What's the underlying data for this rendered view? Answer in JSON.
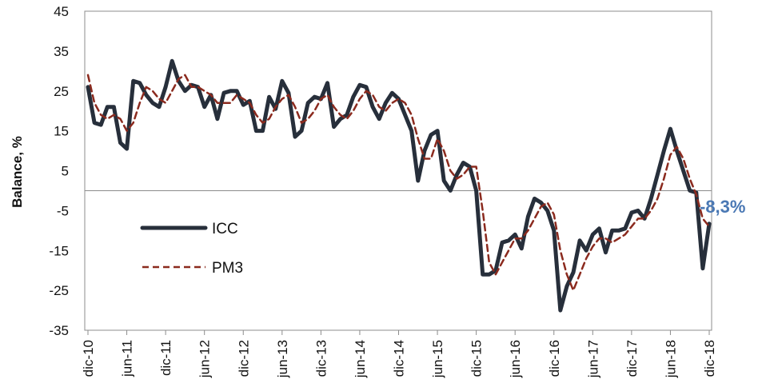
{
  "chart_data": {
    "type": "line",
    "title": "",
    "xlabel": "",
    "ylabel": "Balance, %",
    "ylim": [
      -35,
      45
    ],
    "yticks": [
      45,
      35,
      25,
      15,
      5,
      -5,
      -15,
      -25,
      -35
    ],
    "xticks": [
      "dic-10",
      "jun-11",
      "dic-11",
      "jun-12",
      "dic-12",
      "jun-13",
      "dic-13",
      "jun-14",
      "dic-14",
      "jun-15",
      "dic-15",
      "jun-16",
      "dic-16",
      "jun-17",
      "dic-17",
      "jun-18",
      "dic-18"
    ],
    "grid": false,
    "reference_line": 0,
    "legend": {
      "placement": "center-left"
    },
    "series": [
      {
        "name": "ICC",
        "color": "#272f3b",
        "style": "solid",
        "values": [
          26,
          17,
          16.5,
          21,
          21,
          12,
          10.5,
          27.5,
          27,
          24,
          22,
          21,
          26,
          32.5,
          27.5,
          25,
          26.5,
          26,
          21,
          24,
          18,
          24.5,
          25,
          25,
          21.5,
          22.5,
          15,
          15,
          23.5,
          20.5,
          27.5,
          24.5,
          13.5,
          15,
          22,
          23.5,
          23,
          27,
          16,
          18,
          19,
          23.5,
          26.5,
          26,
          21,
          18,
          22,
          24.5,
          23,
          19,
          15,
          2.5,
          10,
          14,
          15,
          2.5,
          0,
          4,
          7,
          6,
          0,
          -21,
          -21,
          -20,
          -13,
          -12.5,
          -11,
          -14.5,
          -6.5,
          -2,
          -3,
          -5,
          -10,
          -30,
          -24,
          -20.5,
          -12.5,
          -15,
          -11,
          -9.5,
          -15.5,
          -10,
          -10,
          -9.5,
          -5.5,
          -5,
          -7,
          -2,
          4,
          10,
          15.5,
          10,
          5,
          0,
          -0.5,
          -19.5,
          -8.3
        ]
      },
      {
        "name": "PM3",
        "color": "#8b2a1e",
        "style": "dashed",
        "values": [
          29,
          22,
          19,
          18,
          19,
          18,
          15,
          17,
          22,
          26,
          25,
          23,
          22,
          25,
          28,
          29,
          26,
          26,
          25,
          24,
          22,
          22,
          22,
          24,
          23,
          22,
          19,
          17,
          18,
          21,
          23,
          24,
          21,
          17,
          18,
          20,
          23,
          24,
          21,
          19,
          18,
          20,
          23,
          25,
          24,
          21,
          20,
          22,
          23,
          22,
          19,
          13,
          8,
          8,
          13,
          10,
          5,
          3,
          4,
          6,
          6,
          -5,
          -18,
          -21,
          -18,
          -15,
          -12,
          -12,
          -10,
          -7,
          -4,
          -3,
          -6,
          -15,
          -21,
          -25,
          -21,
          -17,
          -14,
          -12,
          -12,
          -13,
          -12,
          -11,
          -9,
          -7,
          -7,
          -5,
          -2,
          3,
          9,
          11,
          8,
          3,
          -1,
          -7,
          -9
        ]
      }
    ],
    "annotations": [
      {
        "text": "-8,3%",
        "color": "#4a78b4"
      }
    ]
  }
}
